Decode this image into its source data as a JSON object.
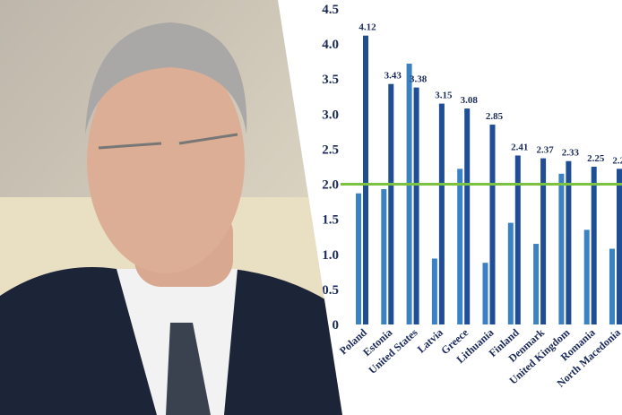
{
  "chart_data": {
    "type": "bar",
    "categories": [
      "Poland",
      "Estonia",
      "United States",
      "Latvia",
      "Greece",
      "Lithuania",
      "Finland",
      "Denmark",
      "United Kingdom",
      "Romania",
      "North Macedonia"
    ],
    "series": [
      {
        "color": "#3b82c4",
        "values": [
          1.87,
          1.93,
          3.72,
          0.94,
          2.22,
          0.88,
          1.45,
          1.15,
          2.15,
          1.35,
          1.08
        ]
      },
      {
        "color": "#1f4e96",
        "values": [
          4.12,
          3.43,
          3.38,
          3.15,
          3.08,
          2.85,
          2.41,
          2.37,
          2.33,
          2.25,
          2.22
        ]
      }
    ],
    "ylim": [
      0,
      4.5
    ],
    "yticks": [
      {
        "value": 0,
        "label": "0"
      },
      0.5,
      {
        "value": 1,
        "label": "1.0"
      },
      1.5,
      {
        "value": 2,
        "label": "2.0"
      },
      2.5,
      {
        "value": 3,
        "label": "3.0"
      },
      3.5,
      {
        "value": 4,
        "label": "4.0"
      },
      4.5
    ],
    "reference_line": {
      "value": 2,
      "color": "#7cc242"
    }
  }
}
